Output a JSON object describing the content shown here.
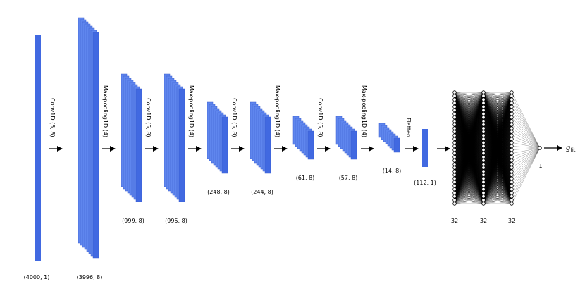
{
  "diagram": {
    "colors": {
      "layer": "#4169e1",
      "layer_back": "#5f86ee",
      "edge": "#000000",
      "node_fill": "#ffffff"
    },
    "layers": [
      {
        "shape": "(4000, 1)"
      },
      {
        "shape": "(3996, 8)"
      },
      {
        "shape": "(999, 8)"
      },
      {
        "shape": "(995, 8)"
      },
      {
        "shape": "(248, 8)"
      },
      {
        "shape": "(244, 8)"
      },
      {
        "shape": "(61, 8)"
      },
      {
        "shape": "(57, 8)"
      },
      {
        "shape": "(14, 8)"
      },
      {
        "shape": "(112, 1)"
      }
    ],
    "operations": [
      "Conv1D (5, 8)",
      "Max-pooling1D (4)",
      "Conv1D (5, 8)",
      "Max-pooling1D (4)",
      "Conv1D (5, 8)",
      "Max-pooling1D (4)",
      "Conv1D (5, 8)",
      "Max-pooling1D (4)",
      "Flatten"
    ],
    "dense_layers": [
      {
        "units": 32,
        "label": "32"
      },
      {
        "units": 32,
        "label": "32"
      },
      {
        "units": 32,
        "label": "32"
      },
      {
        "units": 1,
        "label": "1"
      }
    ],
    "output": {
      "symbol": "g",
      "subscript": "fit"
    }
  }
}
